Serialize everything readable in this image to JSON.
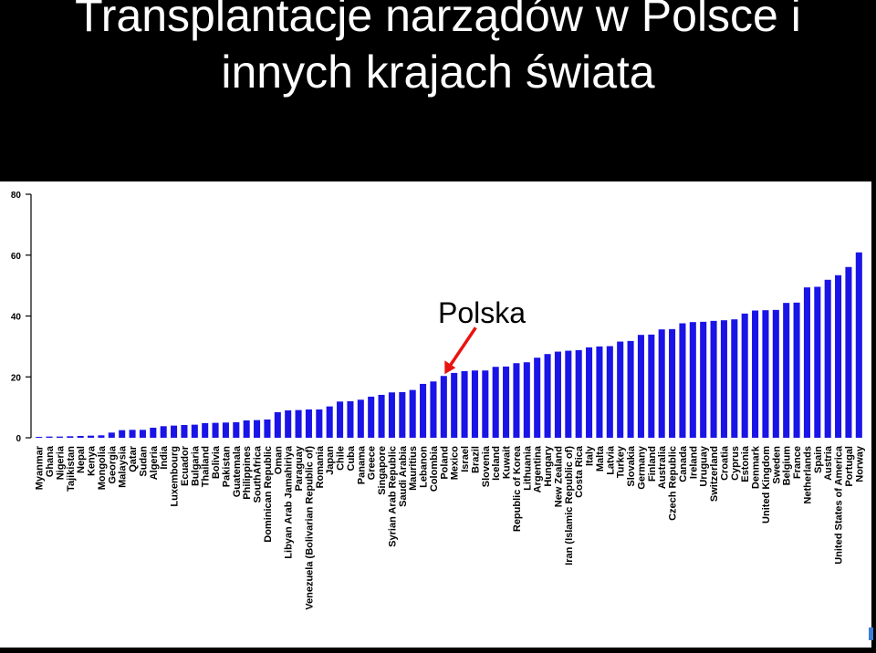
{
  "slide": {
    "title_line1": "Transplantacje narządów w Polsce i",
    "title_line2": "innych krajach świata",
    "annotation": "Polska"
  },
  "colors": {
    "bar": "#1a14e6",
    "arrow": "#e8140f",
    "axis": "#000000"
  },
  "chart_data": {
    "type": "bar",
    "title": "",
    "xlabel": "",
    "ylabel": "",
    "ylim": [
      0,
      80
    ],
    "yticks": [
      0,
      20,
      40,
      60,
      80
    ],
    "grid": false,
    "highlight": "Poland",
    "categories": [
      "Myanmar",
      "Ghana",
      "Nigeria",
      "Tajikistan",
      "Nepal",
      "Kenya",
      "Mongolia",
      "Georgia",
      "Malaysia",
      "Qatar",
      "Sudan",
      "Algeria",
      "India",
      "Luxembourg",
      "Ecuador",
      "Bulgaria",
      "Thailand",
      "Bolivia",
      "Pakistan",
      "Guatemala",
      "Philippines",
      "SouthAfrica",
      "Dominican Republic",
      "Oman",
      "Libyan Arab Jamahiriya",
      "Paraguay",
      "Venezuela (Bolivarian Republic of)",
      "Romania",
      "Japan",
      "Chile",
      "Cuba",
      "Panama",
      "Greece",
      "Singapore",
      "Syrian Arab Republic",
      "Saudi Arabia",
      "Mauritius",
      "Lebanon",
      "Colombia",
      "Poland",
      "Mexico",
      "Israel",
      "Brazil",
      "Slovenia",
      "Iceland",
      "Kuwait",
      "Republic of Korea",
      "Lithuania",
      "Argentina",
      "Hungary",
      "New Zealand",
      "Iran (Islamic Republic of)",
      "Costa Rica",
      "Italy",
      "Malta",
      "Latvia",
      "Turkey",
      "Slovakia",
      "Germany",
      "Finland",
      "Australia",
      "Czech Republic",
      "Canada",
      "Ireland",
      "Uruguay",
      "Switzerland",
      "Croatia",
      "Cyprus",
      "Estonia",
      "Denmark",
      "United Kingdom",
      "Sweden",
      "Belgium",
      "France",
      "Netherlands",
      "Spain",
      "Austria",
      "United States of America",
      "Portugal",
      "Norway"
    ],
    "values": [
      0.3,
      0.4,
      0.4,
      0.5,
      0.6,
      0.7,
      0.8,
      1.7,
      2.5,
      2.6,
      2.6,
      3.3,
      3.8,
      4.0,
      4.2,
      4.3,
      4.8,
      4.9,
      5.0,
      5.1,
      5.7,
      5.8,
      6.0,
      8.4,
      9.0,
      9.1,
      9.3,
      9.3,
      10.3,
      11.9,
      12.0,
      12.5,
      13.5,
      14.1,
      14.9,
      15.0,
      15.7,
      17.7,
      18.5,
      20.3,
      21.3,
      21.9,
      22.1,
      22.1,
      23.3,
      23.4,
      24.5,
      24.8,
      26.3,
      27.5,
      28.3,
      28.6,
      28.8,
      29.7,
      30.0,
      30.1,
      31.6,
      31.8,
      33.8,
      33.9,
      35.6,
      35.7,
      37.6,
      38.0,
      38.1,
      38.4,
      38.6,
      38.9,
      40.8,
      41.8,
      41.9,
      42.0,
      44.3,
      44.4,
      49.4,
      49.6,
      51.9,
      53.4,
      56.1,
      60.9
    ]
  }
}
